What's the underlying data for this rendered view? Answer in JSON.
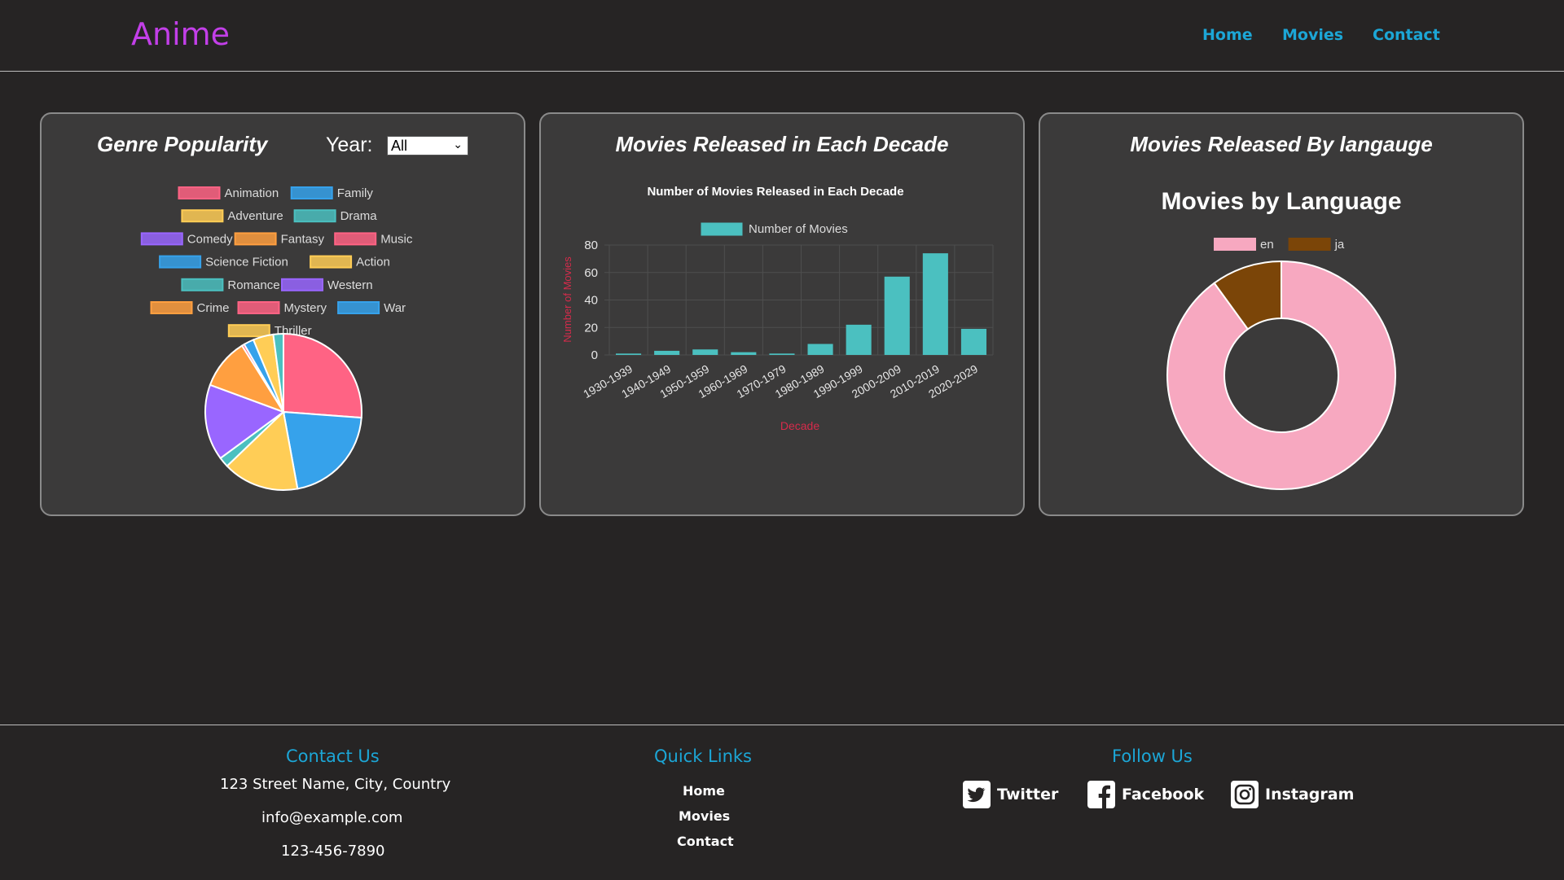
{
  "header": {
    "logo": "Anime",
    "nav": [
      "Home",
      "Movies",
      "Contact"
    ]
  },
  "colors": {
    "background": "#262424",
    "card": "#3b3a3a",
    "accent": "#1ca6d6",
    "logo": "#c23fe8",
    "axis_title": "#d62b4b"
  },
  "genre_card": {
    "title": "Genre Popularity",
    "year_label": "Year:",
    "year_value": "All"
  },
  "decade_card": {
    "title": "Movies Released in Each Decade"
  },
  "language_card": {
    "title": "Movies Released By langauge"
  },
  "chart_data": [
    {
      "type": "pie",
      "legend_position": "top",
      "categories": [
        "Animation",
        "Family",
        "Adventure",
        "Drama",
        "Comedy",
        "Fantasy",
        "Music",
        "Science Fiction",
        "Action",
        "Romance",
        "Western",
        "Crime",
        "Mystery",
        "War",
        "Thriller"
      ],
      "values": [
        25,
        20,
        15,
        2,
        15,
        10,
        0.5,
        2,
        4,
        2,
        0,
        0,
        0,
        0,
        0
      ],
      "colors": [
        "#ff6384",
        "#36a2eb",
        "#ffcd56",
        "#4bc0c0",
        "#9966ff",
        "#ff9f40",
        "#ff6384",
        "#36a2eb",
        "#ffcd56",
        "#4bc0c0",
        "#9966ff",
        "#ff9f40",
        "#ff6384",
        "#36a2eb",
        "#ffcd56"
      ],
      "legend_rows": [
        [
          0,
          1
        ],
        [
          2,
          3
        ],
        [
          4,
          5,
          6
        ],
        [
          7,
          8
        ],
        [
          9,
          10
        ],
        [
          11,
          12,
          13
        ],
        [
          14
        ]
      ]
    },
    {
      "type": "bar",
      "title": "Number of Movies Released in Each Decade",
      "series_name": "Number of Movies",
      "categories": [
        "1930-1939",
        "1940-1949",
        "1950-1959",
        "1960-1969",
        "1970-1979",
        "1980-1989",
        "1990-1999",
        "2000-2009",
        "2010-2019",
        "2020-2029"
      ],
      "values": [
        1,
        3,
        4,
        2,
        1,
        8,
        22,
        57,
        74,
        19
      ],
      "xlabel": "Decade",
      "ylabel": "Number of Movies",
      "ylim": [
        0,
        80
      ],
      "yticks": [
        0,
        20,
        40,
        60,
        80
      ],
      "color": "#4bc0c0",
      "grid": true
    },
    {
      "type": "pie",
      "subtype": "doughnut",
      "title": "Movies by Language",
      "categories": [
        "en",
        "ja"
      ],
      "values": [
        90,
        10
      ],
      "colors": [
        "#f7a8c0",
        "#7b4508"
      ]
    }
  ],
  "footer": {
    "contact": {
      "heading": "Contact Us",
      "address": "123 Street Name, City, Country",
      "email": "info@example.com",
      "phone": "123-456-7890"
    },
    "quick_links": {
      "heading": "Quick Links",
      "links": [
        "Home",
        "Movies",
        "Contact"
      ]
    },
    "follow": {
      "heading": "Follow Us",
      "items": [
        {
          "label": "Twitter",
          "icon": "twitter-icon"
        },
        {
          "label": "Facebook",
          "icon": "facebook-icon"
        },
        {
          "label": "Instagram",
          "icon": "instagram-icon"
        }
      ]
    }
  }
}
